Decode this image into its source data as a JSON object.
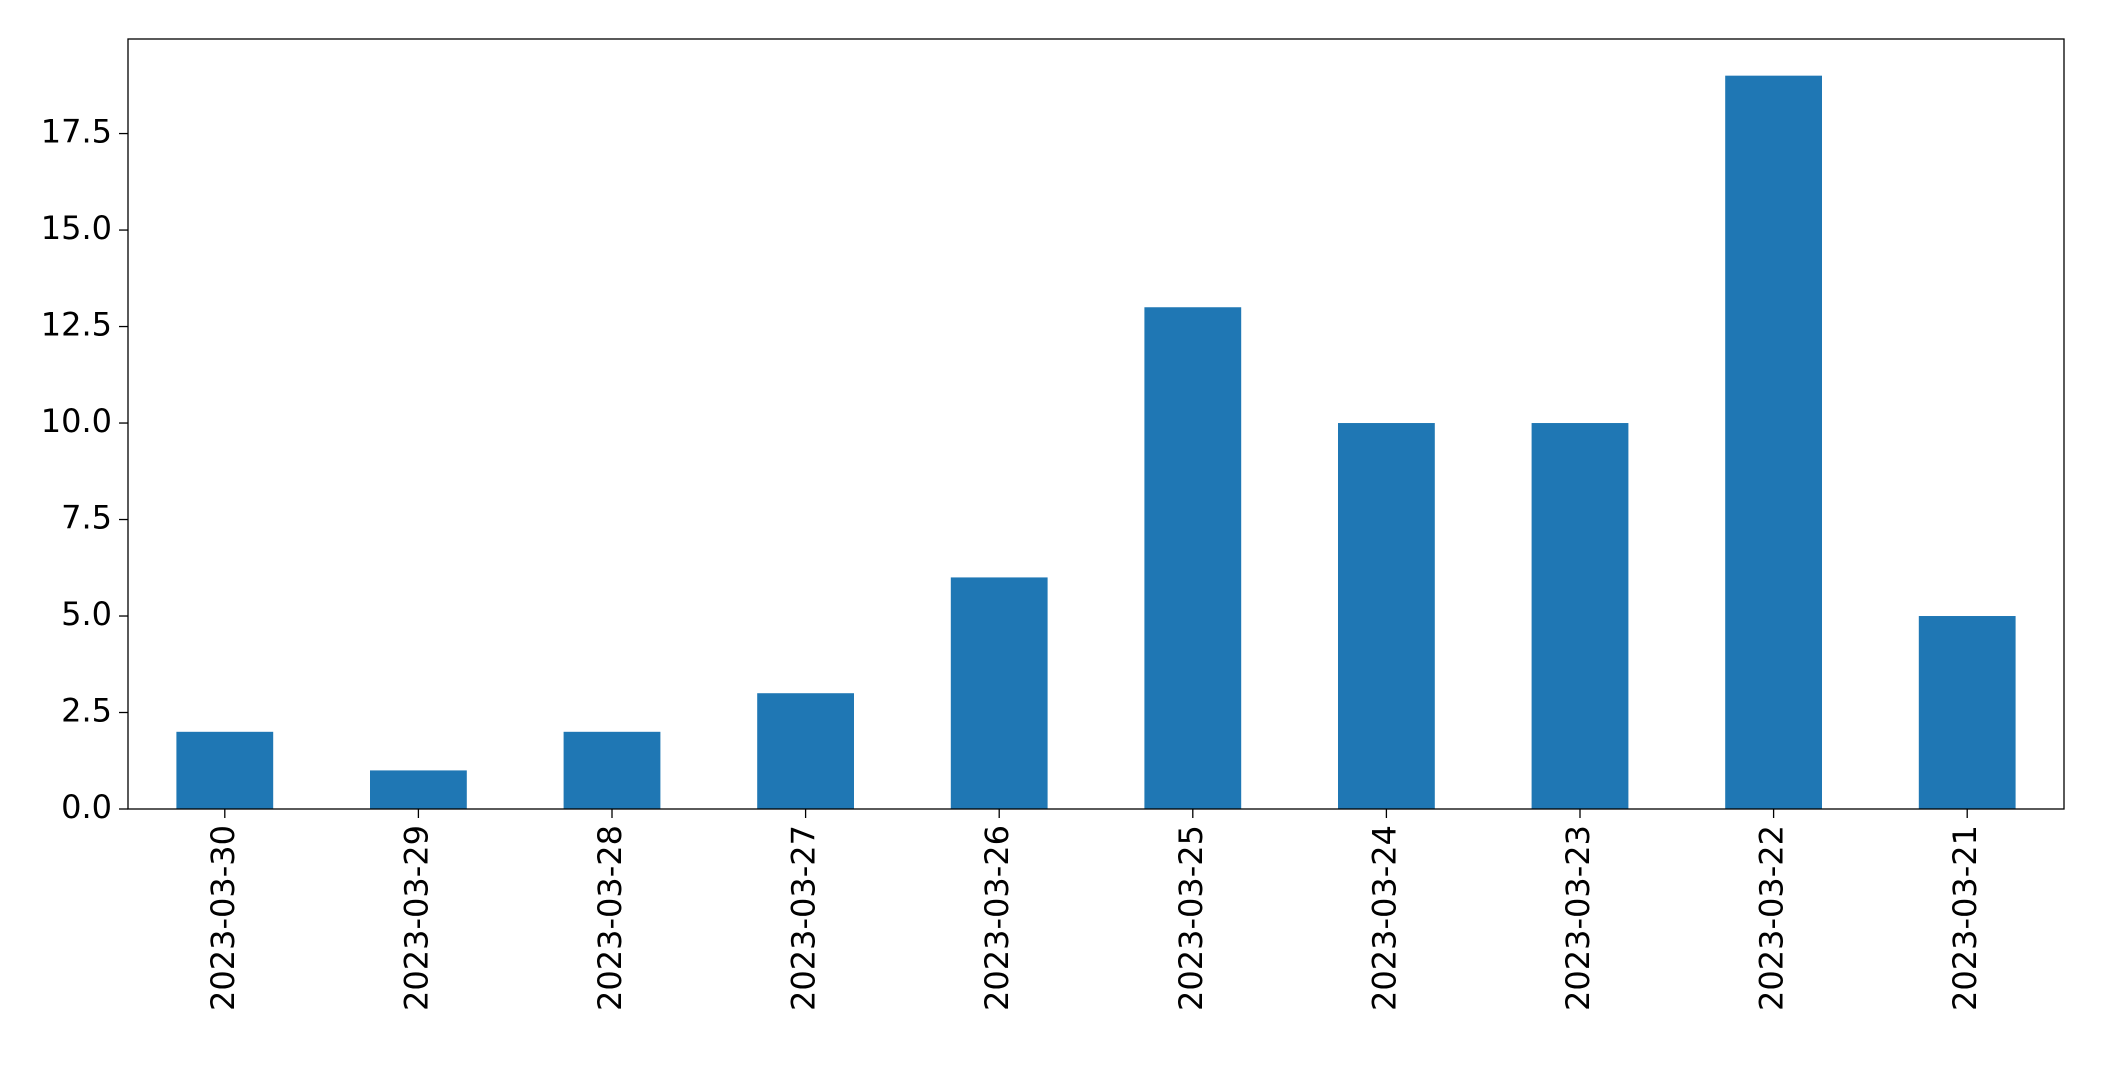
{
  "chart_data": {
    "type": "bar",
    "categories": [
      "2023-03-30",
      "2023-03-29",
      "2023-03-28",
      "2023-03-27",
      "2023-03-26",
      "2023-03-25",
      "2023-03-24",
      "2023-03-23",
      "2023-03-22",
      "2023-03-21"
    ],
    "values": [
      2,
      1,
      2,
      3,
      6,
      13,
      10,
      10,
      19,
      5
    ],
    "color": "#1f77b4",
    "ylim": [
      0,
      19.95
    ],
    "yticks": [
      {
        "value": 0,
        "label": "0.0"
      },
      2.5,
      {
        "value": 5,
        "label": "5.0"
      },
      7.5,
      {
        "value": 10,
        "label": "10.0"
      },
      12.5,
      {
        "value": 15,
        "label": "15.0"
      },
      17.5
    ],
    "grid": false
  }
}
